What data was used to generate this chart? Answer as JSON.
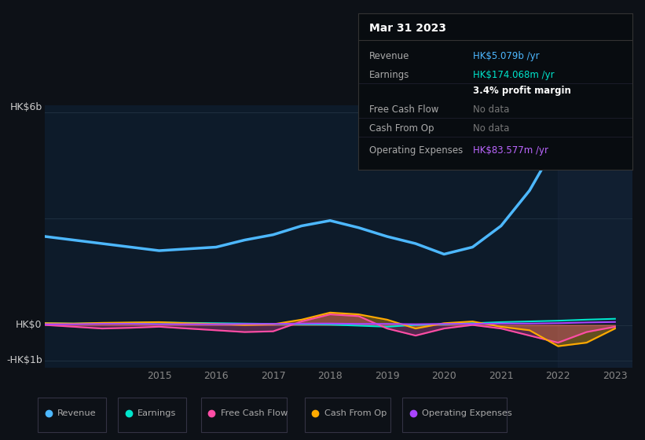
{
  "bg_color": "#0d1117",
  "chart_bg": "#0d1b2a",
  "tooltip_bg": "#080c10",
  "title": "Mar 31 2023",
  "tooltip_rows": [
    {
      "label": "Revenue",
      "value": "HK$5.079b /yr",
      "value_color": "#4db8ff",
      "label_color": "#aaaaaa"
    },
    {
      "label": "Earnings",
      "value": "HK$174.068m /yr",
      "value_color": "#00e5cc",
      "label_color": "#aaaaaa"
    },
    {
      "label": "",
      "value": "3.4% profit margin",
      "value_color": "#ffffff",
      "label_color": "#aaaaaa"
    },
    {
      "label": "Free Cash Flow",
      "value": "No data",
      "value_color": "#777777",
      "label_color": "#aaaaaa"
    },
    {
      "label": "Cash From Op",
      "value": "No data",
      "value_color": "#777777",
      "label_color": "#aaaaaa"
    },
    {
      "label": "Operating Expenses",
      "value": "HK$83.577m /yr",
      "value_color": "#bb66ff",
      "label_color": "#aaaaaa"
    }
  ],
  "years": [
    2013.0,
    2013.5,
    2014.0,
    2014.5,
    2015.0,
    2015.5,
    2016.0,
    2016.5,
    2017.0,
    2017.5,
    2018.0,
    2018.5,
    2019.0,
    2019.5,
    2020.0,
    2020.5,
    2021.0,
    2021.5,
    2022.0,
    2022.5,
    2023.0
  ],
  "revenue": [
    2.5,
    2.4,
    2.3,
    2.2,
    2.1,
    2.15,
    2.2,
    2.4,
    2.55,
    2.8,
    2.95,
    2.75,
    2.5,
    2.3,
    2.0,
    2.2,
    2.8,
    3.8,
    5.2,
    5.1,
    5.079
  ],
  "earnings": [
    0.05,
    0.04,
    0.05,
    0.06,
    0.07,
    0.06,
    0.05,
    0.04,
    0.03,
    0.02,
    0.01,
    -0.02,
    -0.05,
    0.0,
    0.02,
    0.05,
    0.08,
    0.1,
    0.12,
    0.15,
    0.174
  ],
  "free_cash_flow": [
    0.0,
    -0.05,
    -0.1,
    -0.08,
    -0.05,
    -0.1,
    -0.15,
    -0.2,
    -0.18,
    0.1,
    0.3,
    0.25,
    -0.1,
    -0.3,
    -0.1,
    0.0,
    -0.1,
    -0.3,
    -0.5,
    -0.2,
    -0.05
  ],
  "cash_from_op": [
    0.05,
    0.04,
    0.06,
    0.07,
    0.08,
    0.05,
    0.03,
    0.0,
    0.02,
    0.15,
    0.35,
    0.3,
    0.15,
    -0.1,
    0.05,
    0.1,
    -0.05,
    -0.15,
    -0.6,
    -0.5,
    -0.1
  ],
  "operating_expenses": [
    0.02,
    0.02,
    0.03,
    0.03,
    0.02,
    0.02,
    0.02,
    0.03,
    0.03,
    0.04,
    0.04,
    0.03,
    0.03,
    0.02,
    0.03,
    0.03,
    0.04,
    0.04,
    0.05,
    0.07,
    0.084
  ],
  "revenue_color": "#4db8ff",
  "earnings_color": "#00e5cc",
  "fcf_color": "#ff4da6",
  "cash_op_color": "#ffaa00",
  "opex_color": "#aa44ff",
  "ylim": [
    -1.2,
    6.2
  ],
  "ylabel_6b": "HK$6b",
  "ylabel_0": "HK$0",
  "ylabel_neg1b": "-HK$1b",
  "xtick_labels": [
    "2015",
    "2016",
    "2017",
    "2018",
    "2019",
    "2020",
    "2021",
    "2022",
    "2023"
  ],
  "xtick_positions": [
    2015,
    2016,
    2017,
    2018,
    2019,
    2020,
    2021,
    2022,
    2023
  ],
  "legend_labels": [
    "Revenue",
    "Earnings",
    "Free Cash Flow",
    "Cash From Op",
    "Operating Expenses"
  ],
  "legend_colors": [
    "#4db8ff",
    "#00e5cc",
    "#ff4da6",
    "#ffaa00",
    "#aa44ff"
  ]
}
